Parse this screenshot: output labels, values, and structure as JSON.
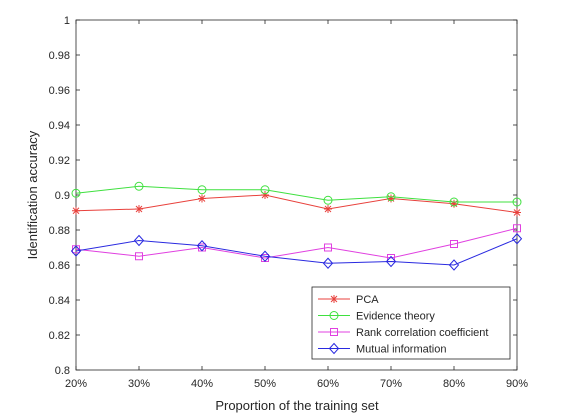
{
  "chart_data": {
    "type": "line",
    "title": "",
    "xlabel": "Proportion of the training set",
    "ylabel": "Identification accuracy",
    "categories": [
      "20%",
      "30%",
      "40%",
      "50%",
      "60%",
      "70%",
      "80%",
      "90%"
    ],
    "ylim": [
      0.8,
      1.0
    ],
    "yticks": [
      "0.8",
      "0.82",
      "0.84",
      "0.86",
      "0.88",
      "0.9",
      "0.92",
      "0.94",
      "0.96",
      "0.98",
      "1"
    ],
    "grid": false,
    "legend_position": "bottom-right",
    "series": [
      {
        "name": "PCA",
        "color": "#e8413c",
        "marker": "star",
        "values": [
          0.891,
          0.892,
          0.898,
          0.9,
          0.892,
          0.898,
          0.895,
          0.89
        ]
      },
      {
        "name": "Evidence theory",
        "color": "#3fe03f",
        "marker": "circle",
        "values": [
          0.901,
          0.905,
          0.903,
          0.903,
          0.897,
          0.899,
          0.896,
          0.896
        ]
      },
      {
        "name": "Rank correlation coefficient",
        "color": "#e040e0",
        "marker": "square",
        "values": [
          0.869,
          0.865,
          0.87,
          0.864,
          0.87,
          0.864,
          0.872,
          0.881
        ]
      },
      {
        "name": "Mutual information",
        "color": "#2a2ae0",
        "marker": "diamond",
        "values": [
          0.868,
          0.874,
          0.871,
          0.865,
          0.861,
          0.862,
          0.86,
          0.875
        ]
      }
    ]
  }
}
